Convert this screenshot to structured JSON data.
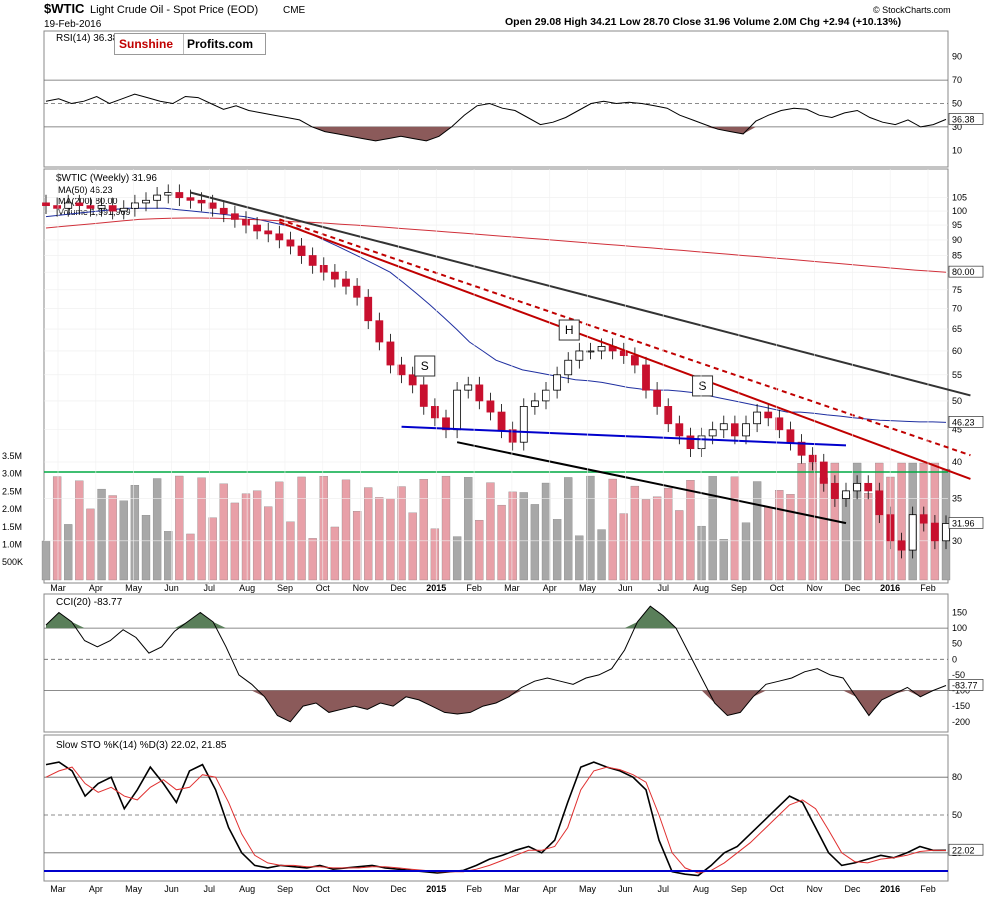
{
  "header": {
    "symbol": "$WTIC",
    "name": "Light Crude Oil - Spot Price (EOD)",
    "exchange": "CME",
    "date": "19-Feb-2016",
    "ohlc": "Open 29.08  High 34.21  Low 28.70  Close 31.96  Volume 2.0M  Chg +2.94 (+10.13%)",
    "credit": "© StockCharts.com"
  },
  "logo": {
    "part1": "Sunshine",
    "part2": "Profits.com"
  },
  "colors": {
    "up": "#ffffff",
    "down": "#c8102e",
    "ma50": "#1f2fa0",
    "ma200": "#d0303a",
    "volGray": "#a8a8a8",
    "volRed": "#e8a0a8",
    "rsiFill": "#8b5a5a",
    "cciGreen": "#5a7f5a",
    "stoK": "#000000",
    "stoD": "#e03030",
    "support": "#0000cc",
    "greenLine": "#00aa44"
  },
  "chart_data": [
    {
      "type": "line",
      "title": "RSI(14) 36.38",
      "ylim": [
        0,
        100
      ],
      "yticks": [
        90,
        70,
        50,
        30,
        10
      ],
      "levels": [
        70,
        50,
        30
      ],
      "last_label": "36.38",
      "series": [
        {
          "name": "RSI(14)",
          "values": [
            52,
            54,
            50,
            52,
            56,
            50,
            54,
            58,
            55,
            52,
            50,
            56,
            55,
            50,
            45,
            48,
            44,
            42,
            40,
            38,
            36,
            30,
            26,
            24,
            22,
            20,
            18,
            20,
            22,
            20,
            18,
            22,
            30,
            40,
            48,
            50,
            46,
            44,
            38,
            32,
            34,
            38,
            44,
            50,
            52,
            50,
            51,
            50,
            48,
            46,
            40,
            36,
            32,
            28,
            26,
            24,
            35,
            40,
            44,
            46,
            45,
            40,
            38,
            42,
            44,
            38,
            34,
            32,
            36,
            30,
            32,
            36.38
          ]
        }
      ]
    },
    {
      "type": "line",
      "title": "$WTIC (Weekly) 31.96",
      "scale": "log",
      "ylim": [
        26,
        112
      ],
      "yticks": [
        105,
        100,
        95,
        90,
        85,
        80,
        75,
        70,
        65,
        60,
        55,
        50,
        45,
        40,
        35,
        30
      ],
      "xticks": [
        "Mar",
        "Apr",
        "May",
        "Jun",
        "Jul",
        "Aug",
        "Sep",
        "Oct",
        "Nov",
        "Dec",
        "2015",
        "Feb",
        "Mar",
        "Apr",
        "May",
        "Jun",
        "Jul",
        "Aug",
        "Sep",
        "Oct",
        "Nov",
        "Dec",
        "2016",
        "Feb"
      ],
      "legend": [
        "MA(50) 46.23",
        "MA(200) 80.00",
        "Volume 1,991,969"
      ],
      "annotations": [
        "S",
        "H",
        "S"
      ],
      "price_labels": {
        "close": "31.96",
        "ma50": "46.23",
        "ma200": "80.00"
      },
      "series": [
        {
          "name": "Weekly close",
          "values": [
            102,
            101,
            103,
            102,
            101,
            102,
            100,
            101,
            103,
            104,
            106,
            107,
            105,
            104,
            103,
            101,
            99,
            97,
            95,
            93,
            92,
            90,
            88,
            85,
            82,
            80,
            78,
            76,
            73,
            67,
            62,
            57,
            55,
            53,
            49,
            47,
            45,
            52,
            53,
            50,
            48,
            45,
            43,
            49,
            50,
            52,
            55,
            58,
            60,
            60,
            61,
            60,
            59,
            57,
            52,
            49,
            46,
            44,
            42,
            44,
            45,
            46,
            44,
            46,
            48,
            47,
            45,
            43,
            41,
            40,
            37,
            35,
            36,
            37,
            36,
            33,
            30,
            29,
            33,
            32,
            30,
            31.96
          ]
        },
        {
          "name": "MA(50)",
          "values": [
            98,
            98.5,
            99,
            99.5,
            100,
            100.5,
            101,
            101,
            101,
            101,
            100.5,
            100,
            99.5,
            99,
            98.5,
            98,
            97,
            96,
            95,
            94,
            92,
            90,
            88,
            86,
            84,
            82,
            80,
            77,
            74,
            71,
            68,
            65,
            62,
            60,
            58,
            57,
            56,
            55.5,
            55,
            54.5,
            54,
            53.8,
            53.5,
            53,
            52.5,
            52.2,
            52,
            52,
            51.8,
            51.5,
            51,
            50.5,
            50,
            49.5,
            49,
            48.5,
            48,
            48,
            47.8,
            47.5,
            47.3,
            47,
            46.8,
            46.6,
            46.5,
            46.4,
            46.3,
            46.3,
            46.23
          ]
        },
        {
          "name": "MA(200)",
          "values": [
            94,
            94.5,
            95,
            95.5,
            96,
            96.5,
            97,
            97.2,
            97.4,
            97.5,
            97.5,
            97.4,
            97.2,
            97,
            96.8,
            96.5,
            96.2,
            96,
            95.7,
            95.3,
            95,
            94.6,
            94.2,
            93.8,
            93.4,
            93,
            92.6,
            92.2,
            91.8,
            91.4,
            91,
            90.6,
            90.2,
            89.8,
            89.4,
            89,
            88.6,
            88.2,
            87.8,
            87.4,
            87,
            86.6,
            86.2,
            85.8,
            85.4,
            85,
            84.6,
            84.2,
            83.8,
            83.4,
            83,
            82.6,
            82.2,
            81.8,
            81.4,
            81,
            80.6,
            80.3,
            80
          ]
        }
      ],
      "volume": {
        "yticks": [
          "3.5M",
          "3.0M",
          "2.5M",
          "2.0M",
          "1.5M",
          "1.0M",
          "500K"
        ],
        "last_label": "2.0M"
      }
    },
    {
      "type": "line",
      "title": "CCI(20) -83.77",
      "ylim": [
        -220,
        190
      ],
      "yticks": [
        150,
        100,
        50,
        0,
        -50,
        -100,
        -150,
        -200
      ],
      "levels": [
        100,
        0,
        -100
      ],
      "last_label": "-83.77",
      "series": [
        {
          "name": "CCI(20)",
          "values": [
            110,
            150,
            120,
            60,
            40,
            60,
            95,
            70,
            20,
            40,
            90,
            120,
            150,
            120,
            40,
            -50,
            -80,
            -120,
            -180,
            -200,
            -150,
            -140,
            -170,
            -160,
            -150,
            -160,
            -140,
            -150,
            -120,
            -130,
            -150,
            -170,
            -175,
            -170,
            -150,
            -140,
            -120,
            -90,
            -70,
            -60,
            -70,
            -80,
            -60,
            -50,
            -30,
            30,
            120,
            170,
            140,
            100,
            20,
            -60,
            -140,
            -180,
            -170,
            -120,
            -80,
            -70,
            -60,
            -40,
            -30,
            -50,
            -60,
            -120,
            -180,
            -130,
            -110,
            -90,
            -120,
            -100,
            -83.77
          ]
        }
      ]
    },
    {
      "type": "line",
      "title": "Slow STO %K(14) %D(3) 22.02, 21.85",
      "ylim": [
        0,
        100
      ],
      "yticks": [
        80,
        50,
        20
      ],
      "levels": [
        80,
        50,
        20
      ],
      "last_label": "22.02",
      "series": [
        {
          "name": "%K(14)",
          "values": [
            90,
            92,
            85,
            65,
            75,
            80,
            55,
            70,
            88,
            75,
            60,
            85,
            90,
            70,
            40,
            20,
            10,
            8,
            10,
            9,
            8,
            10,
            7,
            8,
            9,
            10,
            8,
            7,
            6,
            5,
            4,
            5,
            6,
            10,
            15,
            18,
            22,
            25,
            20,
            30,
            60,
            88,
            92,
            88,
            85,
            80,
            70,
            30,
            5,
            3,
            2,
            10,
            20,
            25,
            35,
            45,
            55,
            65,
            60,
            40,
            20,
            10,
            12,
            15,
            18,
            16,
            20,
            25,
            22,
            22.02
          ]
        },
        {
          "name": "%D(3)",
          "values": [
            80,
            85,
            88,
            75,
            68,
            72,
            65,
            62,
            72,
            78,
            70,
            72,
            82,
            80,
            60,
            35,
            18,
            12,
            10,
            10,
            9,
            9,
            8,
            8,
            8,
            9,
            9,
            8,
            7,
            6,
            5,
            5,
            5,
            7,
            10,
            14,
            18,
            22,
            22,
            25,
            40,
            70,
            85,
            88,
            86,
            82,
            76,
            50,
            20,
            8,
            4,
            6,
            12,
            20,
            28,
            38,
            48,
            58,
            62,
            55,
            38,
            20,
            13,
            12,
            15,
            16,
            18,
            21,
            22,
            21.85
          ]
        }
      ]
    }
  ]
}
